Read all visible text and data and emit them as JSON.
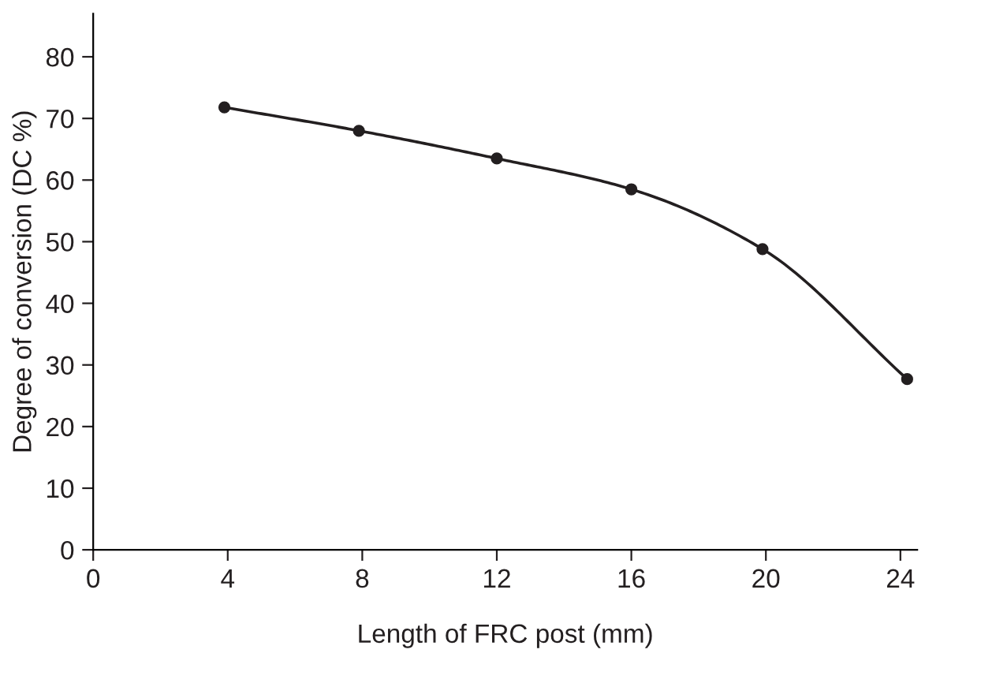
{
  "chart_data": {
    "type": "line",
    "xlabel": "Length of FRC post (mm)",
    "ylabel": "Degree of conversion (DC %)",
    "x": [
      3.9,
      7.9,
      12,
      16,
      19.9,
      24.2
    ],
    "series": [
      {
        "color": "#231f20",
        "values": [
          71.8,
          68.0,
          63.5,
          58.5,
          48.8,
          27.7
        ]
      }
    ],
    "xlim": [
      0,
      24.5
    ],
    "ylim": [
      0,
      87
    ],
    "xticks": [
      0,
      4,
      8,
      12,
      16,
      20,
      24
    ],
    "yticks": [
      0,
      10,
      20,
      30,
      40,
      50,
      60,
      70,
      80
    ],
    "marker": "circle",
    "line_style": "solid",
    "grid": false,
    "legend": false
  }
}
